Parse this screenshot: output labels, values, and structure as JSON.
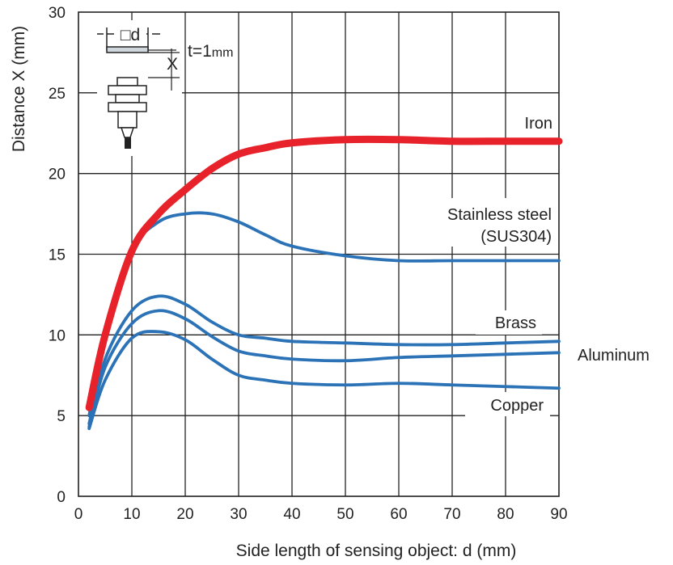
{
  "chart_data": {
    "type": "line",
    "title": "",
    "xlabel": "Side length of sensing object: d (mm)",
    "ylabel": "Distance X (mm)",
    "xlim": [
      0,
      90
    ],
    "ylim": [
      0,
      30
    ],
    "xticks": [
      "0",
      "10",
      "20",
      "30",
      "40",
      "50",
      "60",
      "70",
      "80",
      "90"
    ],
    "yticks": [
      "0",
      "5",
      "10",
      "15",
      "20",
      "25",
      "30"
    ],
    "grid": true,
    "legend": "inline labels",
    "inset": {
      "object_label": "□d",
      "thickness_label": "t=1",
      "thickness_unit": "mm",
      "distance_label": "X"
    },
    "series": [
      {
        "name": "Iron",
        "color": "#e8222b",
        "x": [
          2,
          5,
          10,
          15,
          20,
          25,
          30,
          35,
          40,
          50,
          60,
          70,
          80,
          90
        ],
        "y": [
          5.5,
          10,
          15.2,
          17.5,
          19.0,
          20.3,
          21.2,
          21.6,
          21.9,
          22.1,
          22.1,
          22.0,
          22.0,
          22.0
        ]
      },
      {
        "name": "Stainless steel\n(SUS304)",
        "color": "#2b73b6",
        "x": [
          2,
          5,
          10,
          15,
          20,
          25,
          30,
          35,
          40,
          50,
          60,
          70,
          80,
          90
        ],
        "y": [
          5.0,
          10,
          15.2,
          17.0,
          17.5,
          17.5,
          17.0,
          16.2,
          15.5,
          14.9,
          14.6,
          14.6,
          14.6,
          14.6
        ]
      },
      {
        "name": "Brass",
        "color": "#2b73b6",
        "x": [
          2,
          5,
          10,
          15,
          20,
          25,
          30,
          35,
          40,
          50,
          60,
          70,
          80,
          90
        ],
        "y": [
          4.5,
          8.5,
          11.5,
          12.4,
          11.9,
          10.8,
          10.0,
          9.8,
          9.6,
          9.5,
          9.4,
          9.4,
          9.5,
          9.6
        ]
      },
      {
        "name": "Aluminum",
        "color": "#2b73b6",
        "x": [
          2,
          5,
          10,
          15,
          20,
          25,
          30,
          35,
          40,
          50,
          60,
          70,
          80,
          90
        ],
        "y": [
          4.3,
          8.0,
          10.7,
          11.5,
          11.0,
          9.9,
          9.0,
          8.7,
          8.5,
          8.4,
          8.6,
          8.7,
          8.8,
          8.9
        ]
      },
      {
        "name": "Copper",
        "color": "#2b73b6",
        "x": [
          2,
          5,
          10,
          15,
          20,
          25,
          30,
          35,
          40,
          50,
          60,
          70,
          80,
          90
        ],
        "y": [
          4.2,
          7.2,
          9.8,
          10.2,
          9.7,
          8.5,
          7.5,
          7.2,
          7.0,
          6.9,
          7.0,
          6.9,
          6.8,
          6.7
        ]
      }
    ]
  }
}
